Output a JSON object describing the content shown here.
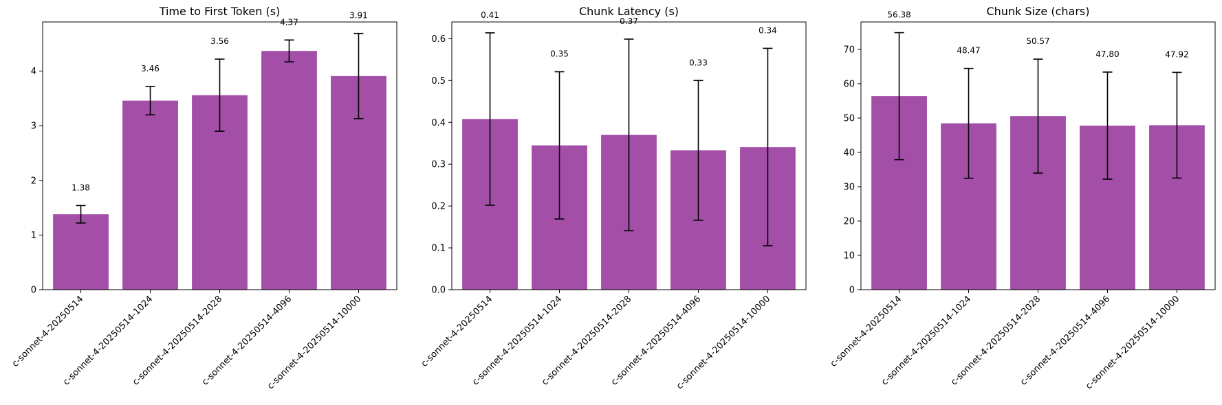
{
  "colors": {
    "bar": "#a34ea7",
    "axis": "#000000",
    "errorbar": "#000000"
  },
  "chart_data": [
    {
      "type": "bar",
      "title": "Time to First Token (s)",
      "categories": [
        "c-sonnet-4-20250514",
        "c-sonnet-4-20250514-1024",
        "c-sonnet-4-20250514-2028",
        "c-sonnet-4-20250514-4096",
        "c-sonnet-4-20250514-10000"
      ],
      "values": [
        1.38,
        3.46,
        3.56,
        4.37,
        3.91
      ],
      "value_labels": [
        "1.38",
        "3.46",
        "3.56",
        "4.37",
        "3.91"
      ],
      "errors": [
        0.16,
        0.26,
        0.66,
        0.2,
        0.78
      ],
      "ylim": [
        0,
        4.9
      ],
      "yticks": [
        0,
        1,
        2,
        3,
        4
      ],
      "ytick_labels": [
        "0",
        "1",
        "2",
        "3",
        "4"
      ],
      "grid": false
    },
    {
      "type": "bar",
      "title": "Chunk Latency (s)",
      "categories": [
        "c-sonnet-4-20250514",
        "c-sonnet-4-20250514-1024",
        "c-sonnet-4-20250514-2028",
        "c-sonnet-4-20250514-4096",
        "c-sonnet-4-20250514-10000"
      ],
      "values": [
        0.408,
        0.345,
        0.37,
        0.333,
        0.341
      ],
      "value_labels": [
        "0.41",
        "0.35",
        "0.37",
        "0.33",
        "0.34"
      ],
      "errors": [
        0.206,
        0.176,
        0.229,
        0.167,
        0.236
      ],
      "ylim": [
        0,
        0.64
      ],
      "yticks": [
        0,
        0.1,
        0.2,
        0.3,
        0.4,
        0.5,
        0.6
      ],
      "ytick_labels": [
        "0.0",
        "0.1",
        "0.2",
        "0.3",
        "0.4",
        "0.5",
        "0.6"
      ],
      "grid": false
    },
    {
      "type": "bar",
      "title": "Chunk Size (chars)",
      "categories": [
        "c-sonnet-4-20250514",
        "c-sonnet-4-20250514-1024",
        "c-sonnet-4-20250514-2028",
        "c-sonnet-4-20250514-4096",
        "c-sonnet-4-20250514-10000"
      ],
      "values": [
        56.38,
        48.47,
        50.57,
        47.8,
        47.92
      ],
      "value_labels": [
        "56.38",
        "48.47",
        "50.57",
        "47.80",
        "47.92"
      ],
      "errors": [
        18.5,
        16.0,
        16.6,
        15.6,
        15.4
      ],
      "ylim": [
        0,
        78
      ],
      "yticks": [
        0,
        10,
        20,
        30,
        40,
        50,
        60,
        70
      ],
      "ytick_labels": [
        "0",
        "10",
        "20",
        "30",
        "40",
        "50",
        "60",
        "70"
      ],
      "grid": false
    }
  ]
}
